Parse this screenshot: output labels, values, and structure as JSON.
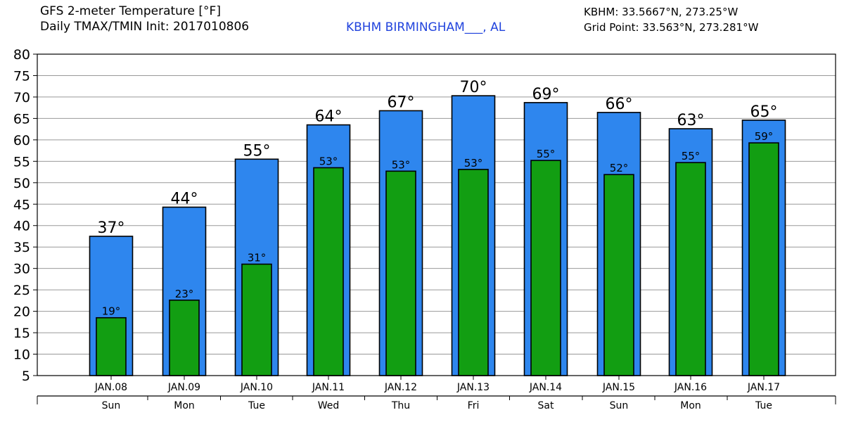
{
  "header": {
    "title_line1": "GFS 2-meter Temperature [°F]",
    "title_line2": "Daily TMAX/TMIN Init: 2017010806",
    "station": "KBHM BIRMINGHAM___, AL",
    "station_coords": "KBHM: 33.5667°N, 273.25°W",
    "grid_point": "Grid Point: 33.563°N, 273.281°W"
  },
  "colors": {
    "tmax_bar": "#2e86ee",
    "tmin_bar": "#129e12",
    "grid": "#999999",
    "station_text": "#2244dd"
  },
  "chart_data": {
    "type": "bar",
    "categories": [
      "JAN.08",
      "JAN.09",
      "JAN.10",
      "JAN.11",
      "JAN.12",
      "JAN.13",
      "JAN.14",
      "JAN.15",
      "JAN.16",
      "JAN.17"
    ],
    "day_names": [
      "Sun",
      "Mon",
      "Tue",
      "Wed",
      "Thu",
      "Fri",
      "Sat",
      "Sun",
      "Mon",
      "Tue"
    ],
    "series": [
      {
        "values": [
          37.5,
          44.3,
          55.5,
          63.5,
          66.8,
          70.3,
          68.7,
          66.4,
          62.6,
          64.6
        ],
        "labels": [
          "37°",
          "44°",
          "55°",
          "64°",
          "67°",
          "70°",
          "69°",
          "66°",
          "63°",
          "65°"
        ]
      },
      {
        "values": [
          18.5,
          22.6,
          31.0,
          53.5,
          52.7,
          53.1,
          55.2,
          51.9,
          54.7,
          59.3
        ],
        "labels": [
          "19°",
          "23°",
          "31°",
          "53°",
          "53°",
          "53°",
          "55°",
          "52°",
          "55°",
          "59°"
        ]
      }
    ],
    "ylim": [
      5,
      80
    ],
    "yticks": [
      5,
      10,
      15,
      20,
      25,
      30,
      35,
      40,
      45,
      50,
      55,
      60,
      65,
      70,
      75,
      80
    ],
    "grid": true
  }
}
